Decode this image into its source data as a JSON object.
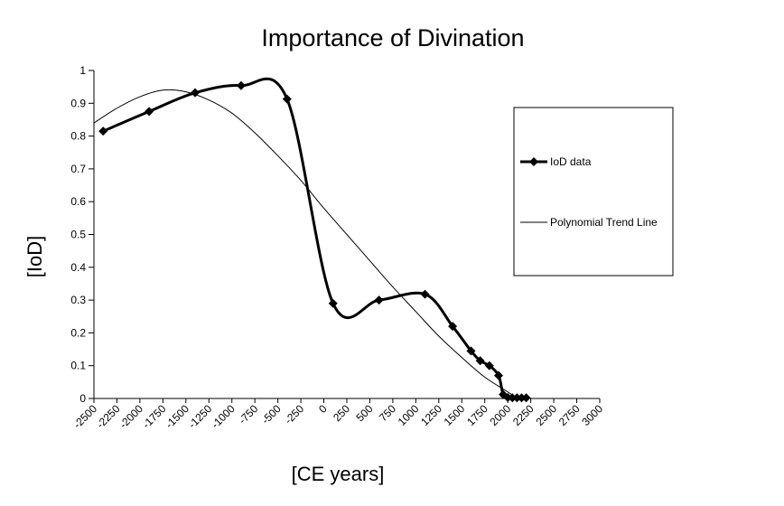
{
  "chart_data": {
    "type": "line",
    "title": "Importance of Divination",
    "xlabel": "[CE years]",
    "ylabel": "[IoD]",
    "xlim": [
      -2500,
      3000
    ],
    "ylim": [
      0,
      1
    ],
    "x_ticks": [
      "-2500",
      "-2250",
      "-2000",
      "-1750",
      "-1500",
      "-1250",
      "-1000",
      "-750",
      "-500",
      "-250",
      "0",
      "250",
      "500",
      "750",
      "1000",
      "1250",
      "1500",
      "1750",
      "2000",
      "2250",
      "2500",
      "2750",
      "3000"
    ],
    "y_ticks": [
      "0",
      "0.1",
      "0.2",
      "0.3",
      "0.4",
      "0.5",
      "0.6",
      "0.7",
      "0.8",
      "0.9",
      "1"
    ],
    "grid": false,
    "legend_position": "right",
    "series": [
      {
        "name": "IoD data",
        "style": "thick-smoothed-line-with-diamond-markers",
        "points": [
          {
            "x": -2400,
            "y": 0.815
          },
          {
            "x": -1900,
            "y": 0.875
          },
          {
            "x": -1400,
            "y": 0.932
          },
          {
            "x": -900,
            "y": 0.954
          },
          {
            "x": -400,
            "y": 0.913
          },
          {
            "x": 100,
            "y": 0.29
          },
          {
            "x": 600,
            "y": 0.3
          },
          {
            "x": 1100,
            "y": 0.318
          },
          {
            "x": 1400,
            "y": 0.22
          },
          {
            "x": 1600,
            "y": 0.145
          },
          {
            "x": 1700,
            "y": 0.115
          },
          {
            "x": 1800,
            "y": 0.1
          },
          {
            "x": 1900,
            "y": 0.07
          },
          {
            "x": 1950,
            "y": 0.012
          },
          {
            "x": 2000,
            "y": 0.003
          },
          {
            "x": 2050,
            "y": 0.002
          },
          {
            "x": 2100,
            "y": 0.002
          },
          {
            "x": 2150,
            "y": 0.002
          },
          {
            "x": 2200,
            "y": 0.002
          }
        ]
      },
      {
        "name": "Polynomial Trend Line",
        "style": "thin-line",
        "points": [
          {
            "x": -2500,
            "y": 0.84
          },
          {
            "x": -2250,
            "y": 0.885
          },
          {
            "x": -2000,
            "y": 0.92
          },
          {
            "x": -1750,
            "y": 0.94
          },
          {
            "x": -1500,
            "y": 0.935
          },
          {
            "x": -1250,
            "y": 0.91
          },
          {
            "x": -1000,
            "y": 0.87
          },
          {
            "x": -750,
            "y": 0.81
          },
          {
            "x": -500,
            "y": 0.74
          },
          {
            "x": -250,
            "y": 0.665
          },
          {
            "x": 0,
            "y": 0.58
          },
          {
            "x": 250,
            "y": 0.5
          },
          {
            "x": 500,
            "y": 0.42
          },
          {
            "x": 750,
            "y": 0.34
          },
          {
            "x": 1000,
            "y": 0.265
          },
          {
            "x": 1250,
            "y": 0.19
          },
          {
            "x": 1500,
            "y": 0.125
          },
          {
            "x": 1750,
            "y": 0.065
          },
          {
            "x": 2000,
            "y": 0.02
          },
          {
            "x": 2100,
            "y": 0.0
          }
        ]
      }
    ]
  }
}
